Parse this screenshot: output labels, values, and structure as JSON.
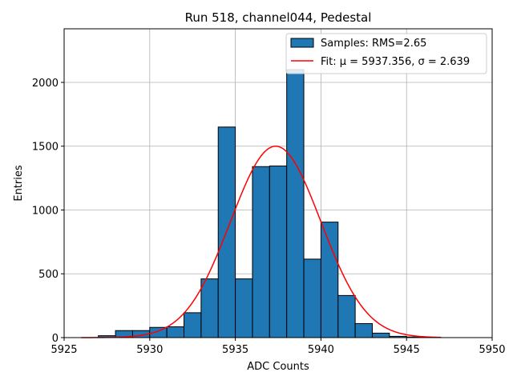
{
  "chart_data": {
    "type": "bar",
    "title": "Run 518, channel044, Pedestal",
    "xlabel": "ADC Counts",
    "ylabel": "Entries",
    "xlim": [
      5925,
      5950
    ],
    "ylim": [
      0,
      2420
    ],
    "grid": true,
    "legend_position": "top-right",
    "xticks": [
      5925,
      5930,
      5935,
      5940,
      5945,
      5950
    ],
    "yticks": [
      0,
      500,
      1000,
      1500,
      2000
    ],
    "histogram": {
      "name": "Samples: RMS=2.65",
      "color": "#1f77b4",
      "bin_edges": [
        5927,
        5928,
        5929,
        5930,
        5931,
        5932,
        5933,
        5934,
        5935,
        5936,
        5937,
        5938,
        5939,
        5940,
        5941,
        5942,
        5943,
        5944,
        5945,
        5946,
        5947
      ],
      "values": [
        15,
        55,
        55,
        80,
        85,
        195,
        460,
        1650,
        460,
        1340,
        1345,
        2100,
        615,
        905,
        330,
        110,
        35,
        10,
        5,
        2
      ]
    },
    "fit": {
      "name": "Fit: μ = 5937.356, σ = 2.639",
      "color": "#ff0000",
      "mu": 5937.356,
      "sigma": 2.639,
      "amplitude": 1500,
      "x_range": [
        5926,
        5947
      ]
    }
  }
}
